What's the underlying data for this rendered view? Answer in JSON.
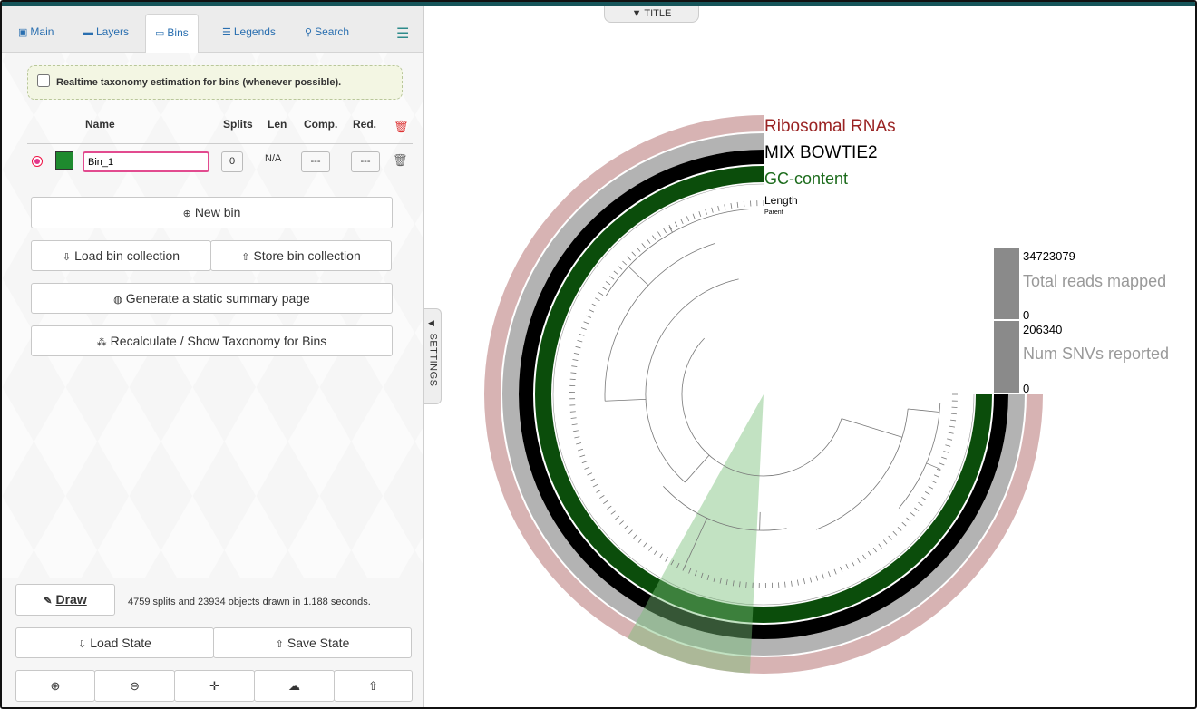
{
  "tabs": [
    {
      "label": "Main",
      "icon": "image-icon"
    },
    {
      "label": "Layers",
      "icon": "layers-icon"
    },
    {
      "label": "Bins",
      "icon": "bins-icon"
    },
    {
      "label": "Legends",
      "icon": "legends-icon"
    },
    {
      "label": "Search",
      "icon": "search-icon"
    }
  ],
  "realtime_taxonomy_label": "Realtime taxonomy estimation for bins (whenever possible).",
  "bins_table": {
    "headers": {
      "name": "Name",
      "splits": "Splits",
      "len": "Len",
      "comp": "Comp.",
      "red": "Red."
    },
    "rows": [
      {
        "name": "Bin_1",
        "color": "#1e8a2e",
        "splits": "0",
        "len": "N/A",
        "comp": "---",
        "red": "---"
      }
    ]
  },
  "buttons": {
    "new_bin": "New bin",
    "load_collection": "Load bin collection",
    "store_collection": "Store bin collection",
    "summary": "Generate a static summary page",
    "taxonomy": "Recalculate / Show Taxonomy for Bins",
    "draw": "Draw",
    "load_state": "Load State",
    "save_state": "Save State"
  },
  "status_text": "4759 splits and 23934 objects drawn in 1.188 seconds.",
  "settings_tab": "SETTINGS",
  "title_tab": "▼ TITLE",
  "layers": {
    "ribosomal": "Ribosomal RNAs",
    "mix": "MIX BOWTIE2",
    "gc": "GC-content",
    "length": "Length",
    "parent": "Parent"
  },
  "bar_legends": [
    {
      "label": "Total reads mapped",
      "max": "34723079",
      "min": "0"
    },
    {
      "label": "Num SNVs reported",
      "max": "206340",
      "min": "0"
    }
  ],
  "colors": {
    "ribosomal": "#d7b3b3",
    "ribosomal_text": "#9a2323",
    "mix": "#000000",
    "gc": "#0b4d0b",
    "gc_text": "#1a6a1a",
    "bin_highlight": "#a7d9a7",
    "accent": "#2a6fb0"
  }
}
